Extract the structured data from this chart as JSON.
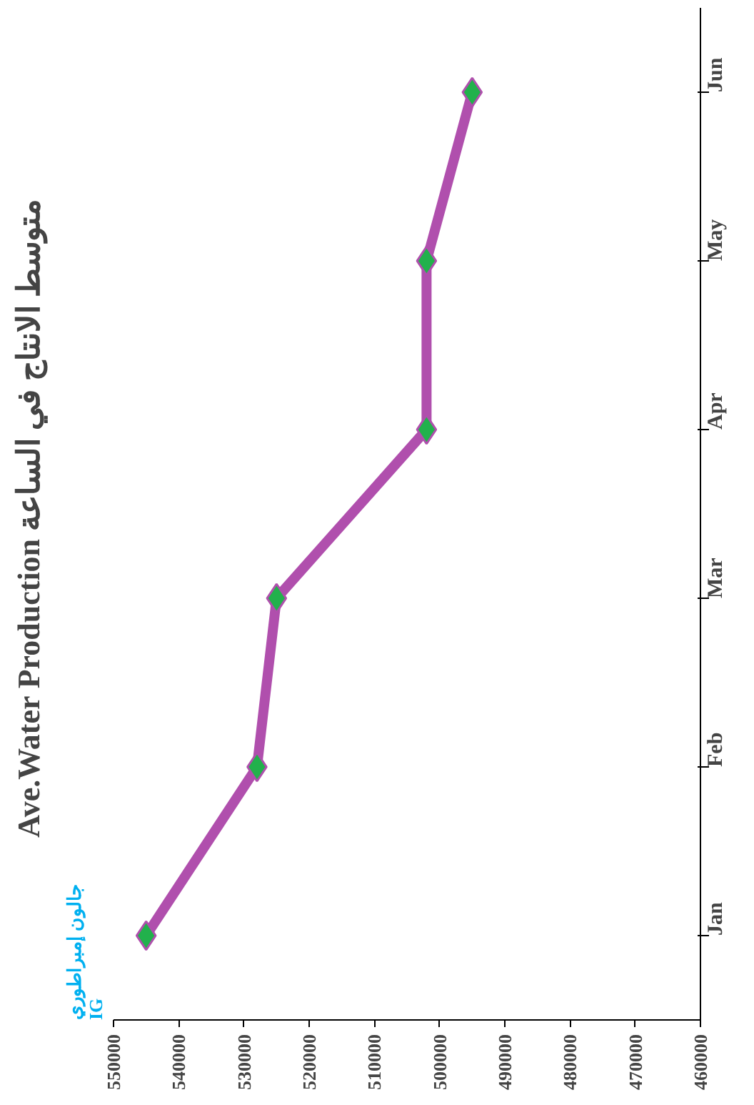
{
  "chart_data": {
    "type": "line",
    "orientation": "horizontal",
    "title": "Ave.Water Production  متوسط الانتاج في الساعة",
    "annotations": [
      "جالون إمبراطوري\nIG"
    ],
    "categories": [
      "Jun",
      "May",
      "Apr",
      "Mar",
      "Feb",
      "Jan"
    ],
    "values": [
      495000,
      502000,
      502000,
      525000,
      528000,
      545000
    ],
    "color": "#b04fad",
    "colors": [
      "#22b14c",
      "#22b14c",
      "#22b14c",
      "#22b14c",
      "#22b14c",
      "#22b14c"
    ],
    "marker": "diamond",
    "line_style": "solid",
    "grid": false,
    "xlim": [
      550000,
      460000
    ],
    "xticks": [
      550000,
      540000,
      530000,
      520000,
      510000,
      500000,
      490000,
      480000,
      470000,
      460000
    ]
  }
}
